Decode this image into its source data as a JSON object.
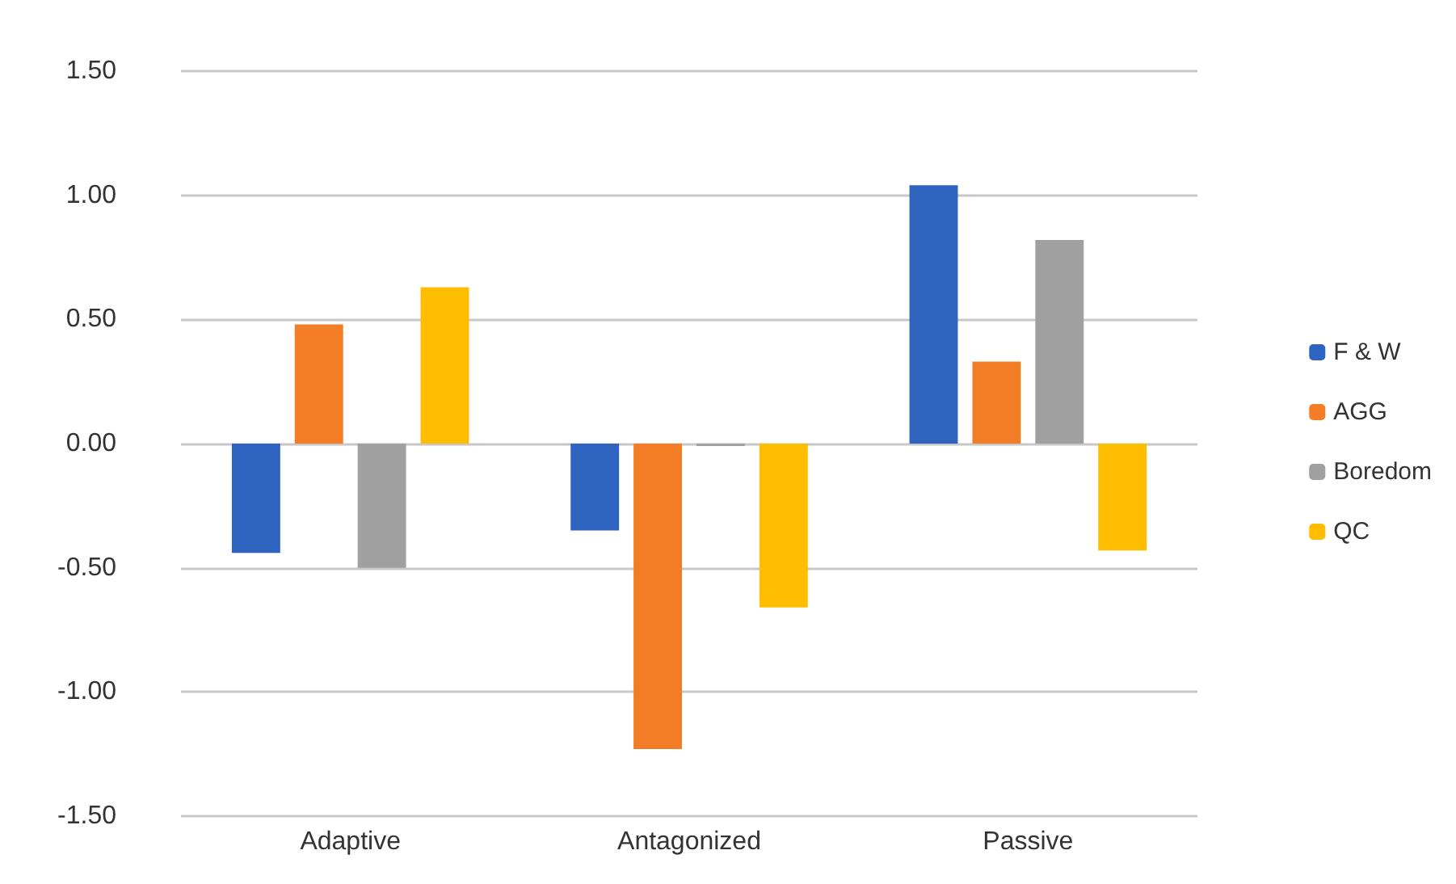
{
  "chart_data": {
    "type": "bar",
    "categories": [
      "Adaptive",
      "Antagonized",
      "Passive"
    ],
    "series": [
      {
        "name": "F & W",
        "color": "#2e64c0",
        "values": [
          -0.44,
          -0.35,
          1.04
        ]
      },
      {
        "name": "AGG",
        "color": "#f37d26",
        "values": [
          0.48,
          -1.23,
          0.33
        ]
      },
      {
        "name": "Boredom",
        "color": "#a0a0a0",
        "values": [
          -0.5,
          -0.01,
          0.82
        ]
      },
      {
        "name": "QC",
        "color": "#ffbd00",
        "values": [
          0.63,
          -0.66,
          -0.43
        ]
      }
    ],
    "ylim": [
      -1.5,
      1.5
    ],
    "yticks": [
      {
        "value": -1.5,
        "label": "-1.50"
      },
      {
        "value": -1,
        "label": "-1.00"
      },
      {
        "value": -0.5,
        "label": "-0.50"
      },
      {
        "value": 0,
        "label": "0.00"
      },
      {
        "value": 0.5,
        "label": "0.50"
      },
      {
        "value": 1,
        "label": "1.00"
      },
      {
        "value": 1.5,
        "label": "1.50"
      }
    ],
    "grid": "y",
    "legend": "right"
  }
}
